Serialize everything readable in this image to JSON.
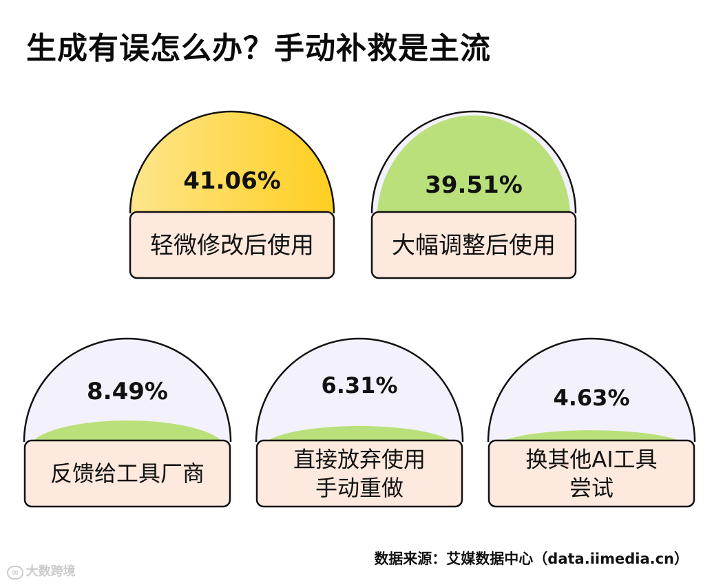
{
  "title": "生成有误怎么办？手动补救是主流",
  "source": "数据来源：艾媒数据中心（data.iimedia.cn）",
  "watermark": "大数跨境",
  "colors": {
    "gauge_background": "#f3f1fb",
    "gauge_fill_top": "#ffce1f",
    "gauge_fill_top_light": "#fde68c",
    "gauge_fill_green": "#b9e07a",
    "label_box": "#fde9dd",
    "outline": "#111111"
  },
  "chart_data": {
    "type": "gauge",
    "unit": "%",
    "items": [
      {
        "label_lines": [
          "轻微修改后使用"
        ],
        "value": 41.06,
        "value_text": "41.06%",
        "fill": "yellow"
      },
      {
        "label_lines": [
          "大幅调整后使用"
        ],
        "value": 39.51,
        "value_text": "39.51%",
        "fill": "green"
      },
      {
        "label_lines": [
          "反馈给工具厂商"
        ],
        "value": 8.49,
        "value_text": "8.49%",
        "fill": "green"
      },
      {
        "label_lines": [
          "直接放弃使用",
          "手动重做"
        ],
        "value": 6.31,
        "value_text": "6.31%",
        "fill": "green"
      },
      {
        "label_lines": [
          "换其他AI工具",
          "尝试"
        ],
        "value": 4.63,
        "value_text": "4.63%",
        "fill": "green"
      }
    ]
  }
}
